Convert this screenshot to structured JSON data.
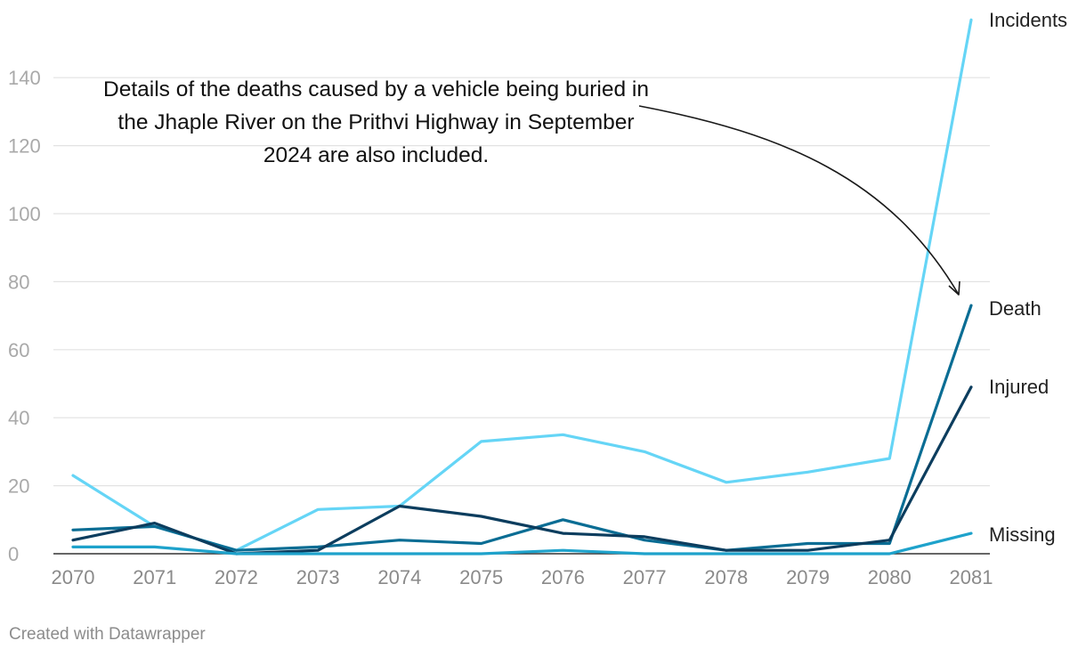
{
  "chart_data": {
    "type": "line",
    "x": [
      2070,
      2071,
      2072,
      2073,
      2074,
      2075,
      2076,
      2077,
      2078,
      2079,
      2080,
      2081
    ],
    "x_tick_labels": [
      "2070",
      "2071",
      "2072",
      "2073",
      "2074",
      "2075",
      "2076",
      "2077",
      "2078",
      "2079",
      "2080",
      "2081"
    ],
    "y_tick_values": [
      0,
      20,
      40,
      60,
      80,
      100,
      120,
      140
    ],
    "y_tick_labels": [
      "0",
      "20",
      "40",
      "60",
      "80",
      "100",
      "120",
      "140"
    ],
    "ylim": [
      0,
      160
    ],
    "grid": true,
    "series": [
      {
        "name": "Incidents",
        "color": "#65d5f6",
        "values": [
          23,
          8,
          1,
          13,
          14,
          33,
          35,
          30,
          21,
          24,
          28,
          157
        ]
      },
      {
        "name": "Death",
        "color": "#0a6d94",
        "values": [
          7,
          8,
          1,
          2,
          4,
          3,
          10,
          4,
          1,
          3,
          3,
          73
        ]
      },
      {
        "name": "Injured",
        "color": "#0c3d5e",
        "values": [
          4,
          9,
          0,
          1,
          14,
          11,
          6,
          5,
          1,
          1,
          4,
          49
        ]
      },
      {
        "name": "Missing",
        "color": "#1ea2cb",
        "values": [
          2,
          2,
          0,
          0,
          0,
          0,
          1,
          0,
          0,
          0,
          0,
          6
        ]
      }
    ],
    "annotation": "Details of the deaths caused by a vehicle being buried in the Jhaple River on the Prithvi Highway in September 2024 are also included."
  },
  "footer": "Created with Datawrapper"
}
